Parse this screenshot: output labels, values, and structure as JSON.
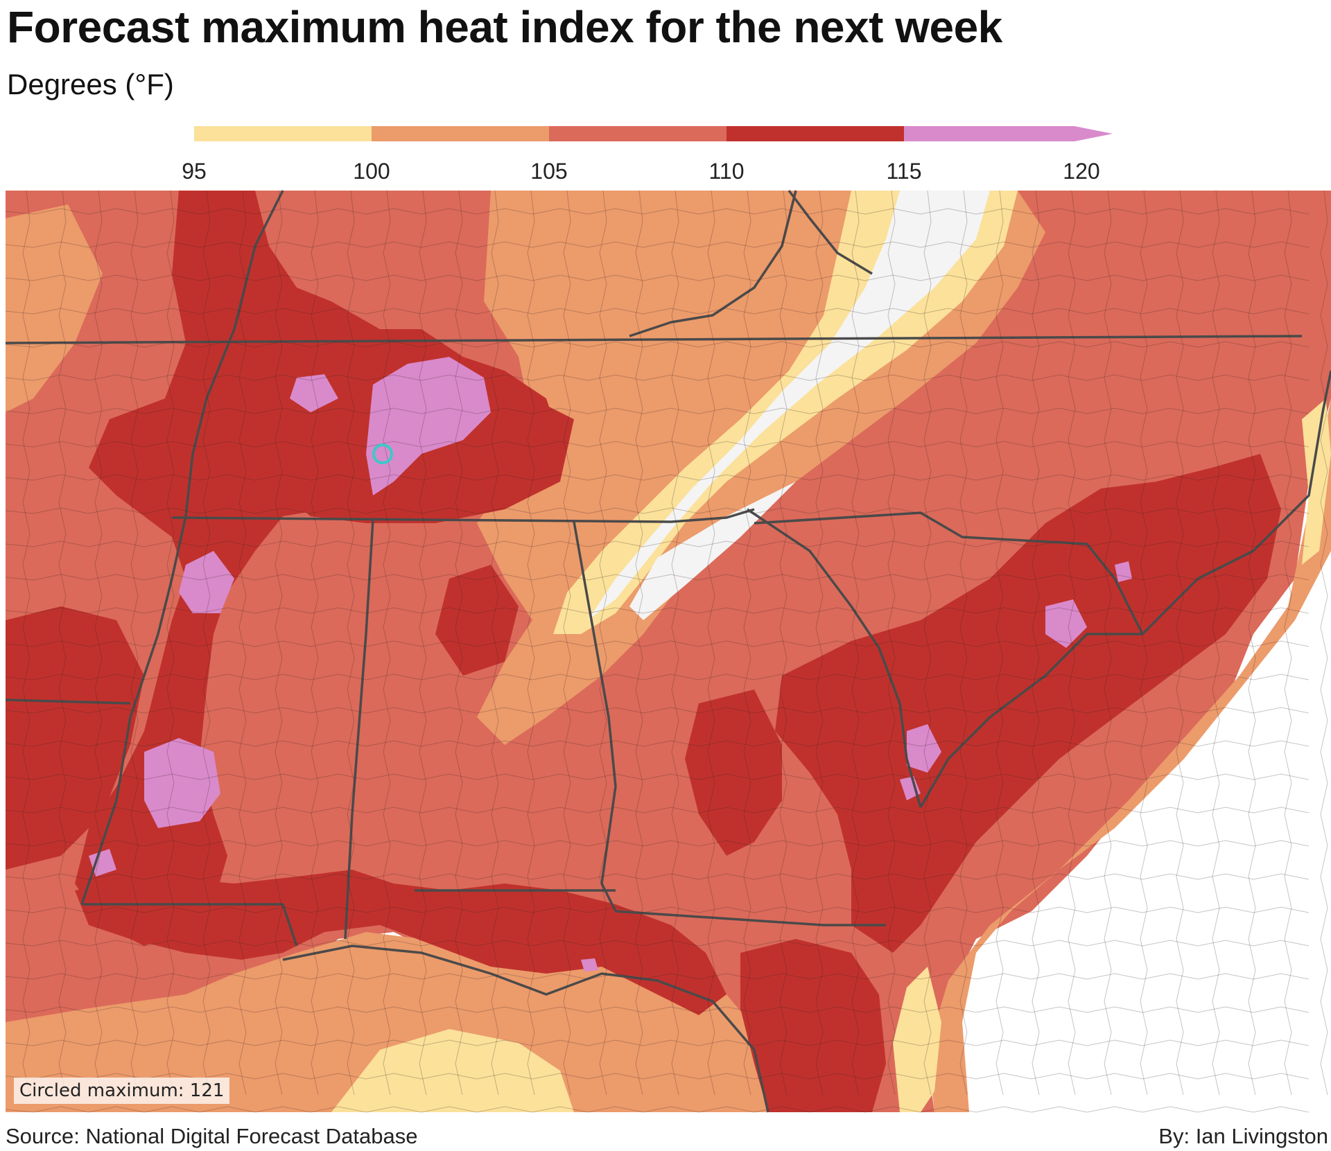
{
  "title": "Forecast maximum heat index for the next week",
  "subtitle": "Degrees (°F)",
  "legend": {
    "ticks": [
      "95",
      "100",
      "105",
      "110",
      "115",
      "120"
    ],
    "bins": [
      {
        "from": 95,
        "to": 100,
        "color": "#fbe19a"
      },
      {
        "from": 100,
        "to": 105,
        "color": "#ec9b6b"
      },
      {
        "from": 105,
        "to": 110,
        "color": "#db6a5a"
      },
      {
        "from": 110,
        "to": 115,
        "color": "#c0312d"
      },
      {
        "from": 115,
        "to": 120,
        "color": "#d98acb"
      }
    ],
    "open_ended_top": true
  },
  "map": {
    "below_95_color": "#f4f4f4",
    "ocean_color": "#ffffff",
    "state_border_color": "#4a4a4a",
    "max_marker_color": "#3cc8c8"
  },
  "note": "Circled maximum: 121",
  "source": "Source: National Digital Forecast Database",
  "byline": "By: Ian Livingston"
}
